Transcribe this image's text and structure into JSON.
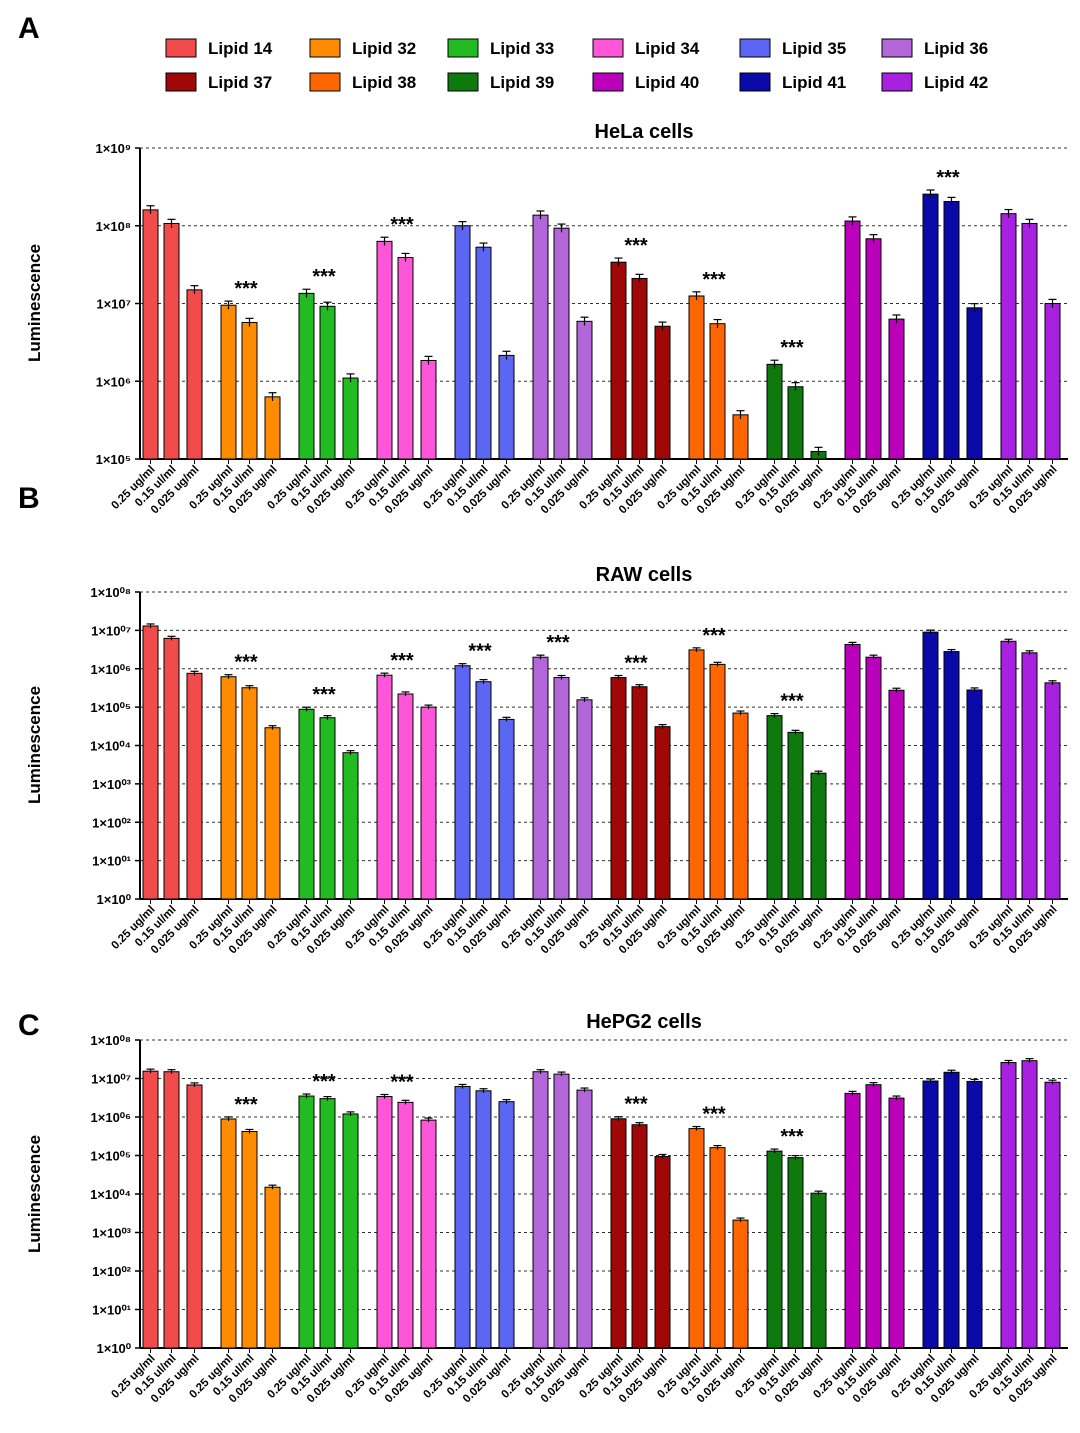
{
  "panel_letters": [
    "A",
    "B",
    "C"
  ],
  "ylabel": "Luminescence",
  "star_label": "***",
  "legend": [
    {
      "name": "Lipid 14",
      "color": "#f24b4b"
    },
    {
      "name": "Lipid 32",
      "color": "#ff8c00"
    },
    {
      "name": "Lipid 33",
      "color": "#22bb22"
    },
    {
      "name": "Lipid 34",
      "color": "#ff55d8"
    },
    {
      "name": "Lipid 35",
      "color": "#5b66f2"
    },
    {
      "name": "Lipid 36",
      "color": "#b366d9"
    },
    {
      "name": "Lipid 37",
      "color": "#a00808"
    },
    {
      "name": "Lipid 38",
      "color": "#ff6600"
    },
    {
      "name": "Lipid 39",
      "color": "#0e7a0e"
    },
    {
      "name": "Lipid 40",
      "color": "#bb00bb"
    },
    {
      "name": "Lipid 41",
      "color": "#0a0aa8"
    },
    {
      "name": "Lipid 42",
      "color": "#a820e0"
    }
  ],
  "chart_data": [
    {
      "type": "bar",
      "scale": "log",
      "title": "HeLa cells",
      "xlabel": "",
      "ylabel": "Luminescence",
      "ylim_exp": [
        5,
        9
      ],
      "ytick_labels": [
        "1×10⁵",
        "1×10⁶",
        "1×10⁷",
        "1×10⁸",
        "1×10⁹"
      ],
      "categories": [
        "0.25 ug/ml",
        "0.15 ul/ml",
        "0.025 ug/ml"
      ],
      "groups": [
        {
          "lipid": "Lipid 14",
          "values": [
            160000000.0,
            107000000.0,
            15000000.0
          ],
          "star": false
        },
        {
          "lipid": "Lipid 32",
          "values": [
            9500000.0,
            5700000.0,
            630000.0
          ],
          "star": true
        },
        {
          "lipid": "Lipid 33",
          "values": [
            13500000.0,
            9200000.0,
            1100000.0
          ],
          "star": true
        },
        {
          "lipid": "Lipid 34",
          "values": [
            63000000.0,
            39000000.0,
            1850000.0
          ],
          "star": true
        },
        {
          "lipid": "Lipid 35",
          "values": [
            100000000.0,
            53000000.0,
            2150000.0
          ],
          "star": false
        },
        {
          "lipid": "Lipid 36",
          "values": [
            137000000.0,
            93000000.0,
            5900000.0
          ],
          "star": false
        },
        {
          "lipid": "Lipid 37",
          "values": [
            34000000.0,
            21000000.0,
            5100000.0
          ],
          "star": true
        },
        {
          "lipid": "Lipid 38",
          "values": [
            12500000.0,
            5500000.0,
            370000.0
          ],
          "star": true
        },
        {
          "lipid": "Lipid 39",
          "values": [
            1650000.0,
            850000.0,
            125000.0
          ],
          "star": true
        },
        {
          "lipid": "Lipid 40",
          "values": [
            115000000.0,
            68000000.0,
            6300000.0
          ],
          "star": false
        },
        {
          "lipid": "Lipid 41",
          "values": [
            255000000.0,
            205000000.0,
            8800000.0
          ],
          "star": true
        },
        {
          "lipid": "Lipid 42",
          "values": [
            143000000.0,
            107000000.0,
            10000000.0
          ],
          "star": false
        }
      ]
    },
    {
      "type": "bar",
      "scale": "log",
      "title": "RAW cells",
      "xlabel": "",
      "ylabel": "Luminescence",
      "ylim_exp": [
        0,
        8
      ],
      "ytick_labels": [
        "1×10⁰",
        "1×10⁰¹",
        "1×10⁰²",
        "1×10⁰³",
        "1×10⁰⁴",
        "1×10⁰⁵",
        "1×10⁰⁶",
        "1×10⁰⁷",
        "1×10⁰⁸"
      ],
      "categories": [
        "0.25 ug/ml",
        "0.15 ul/ml",
        "0.025 ug/ml"
      ],
      "groups": [
        {
          "lipid": "Lipid 14",
          "values": [
            13000000.0,
            6200000.0,
            760000.0
          ],
          "star": false
        },
        {
          "lipid": "Lipid 32",
          "values": [
            620000.0,
            320000.0,
            29000.0
          ],
          "star": true
        },
        {
          "lipid": "Lipid 33",
          "values": [
            88000.0,
            53000.0,
            6500.0
          ],
          "star": true
        },
        {
          "lipid": "Lipid 34",
          "values": [
            680000.0,
            220000.0,
            100000.0
          ],
          "star": true
        },
        {
          "lipid": "Lipid 35",
          "values": [
            1200000.0,
            460000.0,
            48000.0
          ],
          "star": true
        },
        {
          "lipid": "Lipid 36",
          "values": [
            2000000.0,
            590000.0,
            155000.0
          ],
          "star": true
        },
        {
          "lipid": "Lipid 37",
          "values": [
            590000.0,
            340000.0,
            31000.0
          ],
          "star": true
        },
        {
          "lipid": "Lipid 38",
          "values": [
            3100000.0,
            1300000.0,
            70000.0
          ],
          "star": true
        },
        {
          "lipid": "Lipid 39",
          "values": [
            60000.0,
            22000.0,
            1900.0
          ],
          "star": true
        },
        {
          "lipid": "Lipid 40",
          "values": [
            4300000.0,
            2000000.0,
            275000.0
          ],
          "star": false
        },
        {
          "lipid": "Lipid 41",
          "values": [
            9000000.0,
            2800000.0,
            280000.0
          ],
          "star": false
        },
        {
          "lipid": "Lipid 42",
          "values": [
            5200000.0,
            2600000.0,
            430000.0
          ],
          "star": false
        }
      ]
    },
    {
      "type": "bar",
      "scale": "log",
      "title": "HePG2 cells",
      "xlabel": "",
      "ylabel": "Luminescence",
      "ylim_exp": [
        0,
        8
      ],
      "ytick_labels": [
        "1×10⁰",
        "1×10⁰¹",
        "1×10⁰²",
        "1×10⁰³",
        "1×10⁰⁴",
        "1×10⁰⁵",
        "1×10⁰⁶",
        "1×10⁰⁷",
        "1×10⁰⁸"
      ],
      "categories": [
        "0.25 ug/ml",
        "0.15 ul/ml",
        "0.025 ug/ml"
      ],
      "groups": [
        {
          "lipid": "Lipid 14",
          "values": [
            15500000.0,
            15000000.0,
            6800000.0
          ],
          "star": false
        },
        {
          "lipid": "Lipid 32",
          "values": [
            890000.0,
            420000.0,
            15000.0
          ],
          "star": true
        },
        {
          "lipid": "Lipid 33",
          "values": [
            3500000.0,
            3000000.0,
            1200000.0
          ],
          "star": true
        },
        {
          "lipid": "Lipid 34",
          "values": [
            3400000.0,
            2400000.0,
            830000.0
          ],
          "star": true
        },
        {
          "lipid": "Lipid 35",
          "values": [
            6200000.0,
            4800000.0,
            2500000.0
          ],
          "star": false
        },
        {
          "lipid": "Lipid 36",
          "values": [
            15000000.0,
            13000000.0,
            5000000.0
          ],
          "star": false
        },
        {
          "lipid": "Lipid 37",
          "values": [
            900000.0,
            630000.0,
            94000.0
          ],
          "star": true
        },
        {
          "lipid": "Lipid 38",
          "values": [
            500000.0,
            160000.0,
            2100.0
          ],
          "star": true
        },
        {
          "lipid": "Lipid 39",
          "values": [
            130000.0,
            88000.0,
            10500.0
          ],
          "star": true
        },
        {
          "lipid": "Lipid 40",
          "values": [
            4100000.0,
            6900000.0,
            3100000.0
          ],
          "star": false
        },
        {
          "lipid": "Lipid 41",
          "values": [
            8600000.0,
            14500000.0,
            8400000.0
          ],
          "star": false
        },
        {
          "lipid": "Lipid 42",
          "values": [
            26000000.0,
            29000000.0,
            8000000.0
          ],
          "star": false
        }
      ]
    }
  ]
}
